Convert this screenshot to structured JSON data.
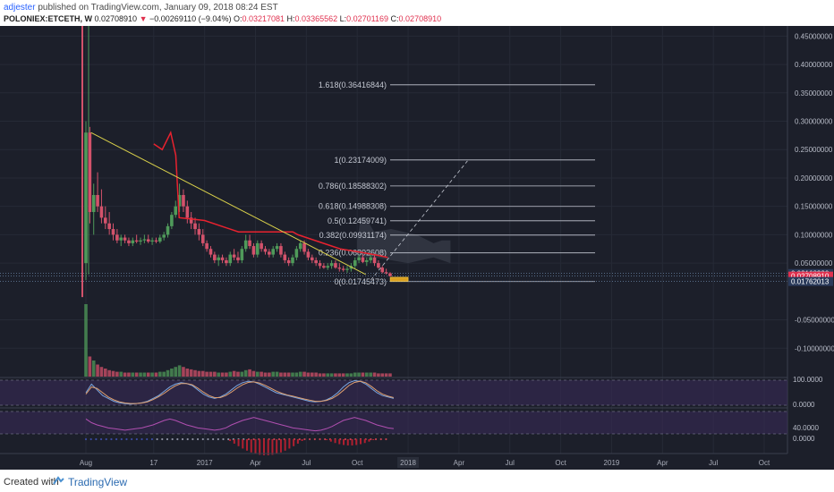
{
  "header": {
    "author": "adjester",
    "published_text": "published on TradingView.com, January 09, 2018 08:24 EST",
    "symbol": "POLONIEX:ETCETH, W",
    "price": "0.02708910",
    "change_arrow": "▼",
    "change": "−0.00269110 (−9.04%)",
    "o_label": "O:",
    "o_value": "0.03217081",
    "h_label": "H:",
    "h_value": "0.03365562",
    "l_label": "L:",
    "l_value": "0.02701169",
    "c_label": "C:",
    "c_value": "0.02708910"
  },
  "footer": {
    "created_with": "Created with",
    "brand": "TradingView",
    "logo_icon": "tradingview-cloud-icon"
  },
  "colors": {
    "background": "#1c1f2a",
    "up": "#4f9a5a",
    "down": "#d3526b",
    "trendline": "#d9d04a",
    "fib": "#c4c8d2",
    "red_line": "#e8222f",
    "stoch_k": "#7aa7e0",
    "stoch_d": "#e0a070",
    "rsi": "#b04fb0",
    "band_fill": "#3a2a5a"
  },
  "chart_data": {
    "type": "candlestick",
    "ylim": [
      -0.15,
      0.46
    ],
    "price_ticks": [
      {
        "value": 0.45,
        "label": "0.45000000"
      },
      {
        "value": 0.4,
        "label": "0.40000000"
      },
      {
        "value": 0.35,
        "label": "0.35000000"
      },
      {
        "value": 0.3,
        "label": "0.30000000"
      },
      {
        "value": 0.25,
        "label": "0.25000000"
      },
      {
        "value": 0.2,
        "label": "0.20000000"
      },
      {
        "value": 0.15,
        "label": "0.15000000"
      },
      {
        "value": 0.1,
        "label": "0.10000000"
      },
      {
        "value": 0.05,
        "label": "0.05000000"
      },
      {
        "value": -0.05,
        "label": "-0.05000000"
      },
      {
        "value": -0.1,
        "label": "-0.10000000"
      }
    ],
    "price_tags": [
      {
        "value": 0.0316833,
        "label": "0.03168330",
        "color": "#2a3a5a"
      },
      {
        "value": 0.0270891,
        "label": "0.02708910",
        "color": "#e0304e"
      },
      {
        "value": 0.01762013,
        "label": "0.01762013",
        "color": "#2a3a5a"
      }
    ],
    "fib_levels": [
      {
        "value": 0.36416844,
        "label": "1.618(0.36416844)"
      },
      {
        "value": 0.23174009,
        "label": "1(0.23174009)"
      },
      {
        "value": 0.18588302,
        "label": "0.786(0.18588302)"
      },
      {
        "value": 0.14988308,
        "label": "0.618(0.14988308)"
      },
      {
        "value": 0.12459741,
        "label": "0.5(0.12459741)"
      },
      {
        "value": 0.09931174,
        "label": "0.382(0.09931174)"
      },
      {
        "value": 0.06802608,
        "label": "0.236(0.06802608)"
      },
      {
        "value": 0.01745473,
        "label": "0(0.01745473)"
      }
    ],
    "time_axis": [
      {
        "t": 0.0,
        "label": "Aug"
      },
      {
        "t": 4.0,
        "label": "17"
      },
      {
        "t": 7.0,
        "label": "2017"
      },
      {
        "t": 10.0,
        "label": "Apr"
      },
      {
        "t": 13.0,
        "label": "Jul"
      },
      {
        "t": 16.0,
        "label": "Oct"
      },
      {
        "t": 19.0,
        "label": "2018"
      },
      {
        "t": 22.0,
        "label": "Apr"
      },
      {
        "t": 25.0,
        "label": "Jul"
      },
      {
        "t": 28.0,
        "label": "Oct"
      },
      {
        "t": 31.0,
        "label": "2019"
      },
      {
        "t": 34.0,
        "label": "Apr"
      },
      {
        "t": 37.0,
        "label": "Jul"
      },
      {
        "t": 40.0,
        "label": "Oct"
      }
    ],
    "candles": [
      [
        0.0,
        0.05,
        0.3,
        0.02,
        0.28
      ],
      [
        0.23,
        0.28,
        0.29,
        0.12,
        0.14
      ],
      [
        0.46,
        0.14,
        0.19,
        0.1,
        0.17
      ],
      [
        0.69,
        0.17,
        0.21,
        0.14,
        0.15
      ],
      [
        0.92,
        0.15,
        0.18,
        0.12,
        0.13
      ],
      [
        1.15,
        0.13,
        0.15,
        0.11,
        0.12
      ],
      [
        1.38,
        0.12,
        0.14,
        0.1,
        0.11
      ],
      [
        1.61,
        0.11,
        0.12,
        0.09,
        0.1
      ],
      [
        1.84,
        0.1,
        0.11,
        0.085,
        0.09
      ],
      [
        2.07,
        0.09,
        0.1,
        0.08,
        0.095
      ],
      [
        2.3,
        0.095,
        0.1,
        0.085,
        0.09
      ],
      [
        2.53,
        0.09,
        0.095,
        0.08,
        0.085
      ],
      [
        2.76,
        0.085,
        0.095,
        0.08,
        0.09
      ],
      [
        2.99,
        0.09,
        0.1,
        0.085,
        0.088
      ],
      [
        3.22,
        0.088,
        0.095,
        0.082,
        0.09
      ],
      [
        3.45,
        0.09,
        0.1,
        0.085,
        0.092
      ],
      [
        3.68,
        0.092,
        0.1,
        0.085,
        0.088
      ],
      [
        3.91,
        0.088,
        0.095,
        0.082,
        0.09
      ],
      [
        4.14,
        0.09,
        0.095,
        0.085,
        0.088
      ],
      [
        4.37,
        0.088,
        0.1,
        0.085,
        0.095
      ],
      [
        4.6,
        0.095,
        0.105,
        0.09,
        0.1
      ],
      [
        4.83,
        0.1,
        0.12,
        0.095,
        0.115
      ],
      [
        5.06,
        0.115,
        0.14,
        0.11,
        0.135
      ],
      [
        5.29,
        0.135,
        0.16,
        0.13,
        0.15
      ],
      [
        5.52,
        0.15,
        0.19,
        0.14,
        0.17
      ],
      [
        5.75,
        0.17,
        0.18,
        0.14,
        0.15
      ],
      [
        5.98,
        0.15,
        0.16,
        0.12,
        0.13
      ],
      [
        6.21,
        0.13,
        0.14,
        0.11,
        0.12
      ],
      [
        6.44,
        0.12,
        0.13,
        0.1,
        0.11
      ],
      [
        6.67,
        0.11,
        0.12,
        0.09,
        0.1
      ],
      [
        6.9,
        0.1,
        0.11,
        0.08,
        0.085
      ],
      [
        7.13,
        0.085,
        0.09,
        0.07,
        0.075
      ],
      [
        7.36,
        0.075,
        0.08,
        0.06,
        0.065
      ],
      [
        7.59,
        0.065,
        0.07,
        0.05,
        0.055
      ],
      [
        7.82,
        0.055,
        0.065,
        0.045,
        0.06
      ],
      [
        8.05,
        0.06,
        0.065,
        0.05,
        0.055
      ],
      [
        8.28,
        0.055,
        0.06,
        0.045,
        0.05
      ],
      [
        8.51,
        0.05,
        0.07,
        0.045,
        0.065
      ],
      [
        8.74,
        0.065,
        0.075,
        0.055,
        0.06
      ],
      [
        8.97,
        0.06,
        0.07,
        0.05,
        0.055
      ],
      [
        9.2,
        0.055,
        0.08,
        0.05,
        0.075
      ],
      [
        9.43,
        0.075,
        0.1,
        0.07,
        0.09
      ],
      [
        9.66,
        0.09,
        0.1,
        0.075,
        0.08
      ],
      [
        9.89,
        0.08,
        0.085,
        0.06,
        0.065
      ],
      [
        10.12,
        0.065,
        0.09,
        0.06,
        0.085
      ],
      [
        10.35,
        0.085,
        0.09,
        0.07,
        0.075
      ],
      [
        10.58,
        0.075,
        0.08,
        0.065,
        0.07
      ],
      [
        10.81,
        0.07,
        0.075,
        0.06,
        0.065
      ],
      [
        11.04,
        0.065,
        0.08,
        0.06,
        0.075
      ],
      [
        11.27,
        0.075,
        0.085,
        0.07,
        0.08
      ],
      [
        11.5,
        0.08,
        0.085,
        0.06,
        0.065
      ],
      [
        11.73,
        0.065,
        0.07,
        0.05,
        0.055
      ],
      [
        11.96,
        0.055,
        0.06,
        0.045,
        0.05
      ],
      [
        12.19,
        0.05,
        0.065,
        0.045,
        0.06
      ],
      [
        12.42,
        0.06,
        0.08,
        0.055,
        0.075
      ],
      [
        12.65,
        0.075,
        0.09,
        0.07,
        0.085
      ],
      [
        12.88,
        0.085,
        0.09,
        0.065,
        0.07
      ],
      [
        13.11,
        0.07,
        0.075,
        0.055,
        0.06
      ],
      [
        13.34,
        0.06,
        0.065,
        0.05,
        0.055
      ],
      [
        13.57,
        0.055,
        0.06,
        0.045,
        0.05
      ],
      [
        13.8,
        0.05,
        0.055,
        0.04,
        0.045
      ],
      [
        14.03,
        0.045,
        0.05,
        0.04,
        0.042
      ],
      [
        14.26,
        0.042,
        0.05,
        0.038,
        0.045
      ],
      [
        14.49,
        0.045,
        0.055,
        0.04,
        0.05
      ],
      [
        14.72,
        0.05,
        0.055,
        0.04,
        0.042
      ],
      [
        14.95,
        0.042,
        0.05,
        0.035,
        0.04
      ],
      [
        15.18,
        0.04,
        0.045,
        0.035,
        0.038
      ],
      [
        15.41,
        0.038,
        0.045,
        0.033,
        0.04
      ],
      [
        15.64,
        0.04,
        0.05,
        0.035,
        0.045
      ],
      [
        15.87,
        0.045,
        0.06,
        0.04,
        0.055
      ],
      [
        16.1,
        0.055,
        0.065,
        0.05,
        0.06
      ],
      [
        16.33,
        0.06,
        0.065,
        0.05,
        0.052
      ],
      [
        16.56,
        0.052,
        0.06,
        0.045,
        0.055
      ],
      [
        16.79,
        0.055,
        0.065,
        0.05,
        0.06
      ],
      [
        17.02,
        0.06,
        0.065,
        0.045,
        0.05
      ],
      [
        17.25,
        0.05,
        0.055,
        0.04,
        0.042
      ],
      [
        17.48,
        0.042,
        0.045,
        0.032,
        0.034
      ],
      [
        17.71,
        0.034,
        0.04,
        0.03,
        0.032
      ],
      [
        17.94,
        0.032,
        0.034,
        0.027,
        0.027
      ]
    ],
    "trendline": [
      [
        0.3,
        0.28
      ],
      [
        16.5,
        0.03
      ]
    ],
    "fib_dashed": [
      [
        16.8,
        0.02
      ],
      [
        22.5,
        0.23
      ]
    ],
    "red_line": [
      [
        4.0,
        0.26
      ],
      [
        4.5,
        0.25
      ],
      [
        5.0,
        0.28
      ],
      [
        5.3,
        0.24
      ],
      [
        5.5,
        0.13
      ],
      [
        7.0,
        0.125
      ],
      [
        9.0,
        0.105
      ],
      [
        12.2,
        0.105
      ],
      [
        12.5,
        0.1
      ],
      [
        13.5,
        0.09
      ],
      [
        15.0,
        0.075
      ],
      [
        16.0,
        0.07
      ],
      [
        17.0,
        0.065
      ],
      [
        17.8,
        0.06
      ]
    ],
    "cloud": [
      [
        16.0,
        0.09
      ],
      [
        16.2,
        0.13
      ],
      [
        16.5,
        0.13
      ],
      [
        17.0,
        0.105
      ],
      [
        18.0,
        0.11
      ],
      [
        19.5,
        0.1
      ],
      [
        20.5,
        0.085
      ],
      [
        21.0,
        0.09
      ],
      [
        21.5,
        0.09
      ],
      [
        21.5,
        0.05
      ],
      [
        20.5,
        0.06
      ],
      [
        19.0,
        0.05
      ],
      [
        17.0,
        0.06
      ],
      [
        16.0,
        0.06
      ]
    ],
    "current_box": [
      17.95,
      19.0,
      0.018,
      0.025
    ],
    "volume": [
      0.9,
      0.25,
      0.2,
      0.15,
      0.12,
      0.1,
      0.08,
      0.07,
      0.06,
      0.06,
      0.05,
      0.05,
      0.05,
      0.05,
      0.05,
      0.05,
      0.05,
      0.05,
      0.05,
      0.06,
      0.06,
      0.08,
      0.1,
      0.12,
      0.14,
      0.12,
      0.1,
      0.09,
      0.08,
      0.07,
      0.07,
      0.06,
      0.06,
      0.06,
      0.05,
      0.05,
      0.05,
      0.06,
      0.07,
      0.06,
      0.06,
      0.08,
      0.09,
      0.07,
      0.06,
      0.06,
      0.05,
      0.05,
      0.06,
      0.06,
      0.05,
      0.05,
      0.05,
      0.05,
      0.05,
      0.06,
      0.06,
      0.05,
      0.05,
      0.05,
      0.04,
      0.04,
      0.04,
      0.04,
      0.04,
      0.04,
      0.04,
      0.04,
      0.04,
      0.05,
      0.05,
      0.05,
      0.05,
      0.05,
      0.05,
      0.04,
      0.04,
      0.04,
      0.04
    ],
    "stoch_ticks": [
      {
        "value": 100,
        "label": "100.0000"
      },
      {
        "value": 0,
        "label": "0.0000"
      }
    ],
    "stoch_k": [
      50,
      80,
      60,
      40,
      30,
      20,
      15,
      12,
      10,
      12,
      15,
      20,
      30,
      40,
      55,
      70,
      80,
      85,
      82,
      75,
      60,
      45,
      35,
      30,
      35,
      45,
      60,
      75,
      85,
      90,
      88,
      80,
      70,
      60,
      50,
      45,
      40,
      35,
      30,
      25,
      20,
      18,
      20,
      25,
      35,
      50,
      70,
      85,
      92,
      90,
      80,
      65,
      50,
      40,
      35,
      30
    ],
    "stoch_d": [
      45,
      70,
      65,
      50,
      35,
      25,
      18,
      14,
      12,
      12,
      14,
      18,
      26,
      36,
      48,
      62,
      74,
      82,
      82,
      78,
      66,
      52,
      40,
      33,
      33,
      40,
      52,
      66,
      78,
      86,
      88,
      84,
      76,
      66,
      56,
      48,
      42,
      38,
      33,
      28,
      24,
      20,
      20,
      23,
      30,
      42,
      58,
      75,
      86,
      90,
      85,
      72,
      57,
      45,
      38,
      33
    ],
    "rsi_ticks": [
      {
        "value": 40,
        "label": "40.0000"
      },
      {
        "value": 0,
        "label": "0.0000"
      }
    ],
    "rsi": [
      60,
      55,
      52,
      50,
      48,
      47,
      46,
      45,
      46,
      47,
      48,
      50,
      52,
      55,
      58,
      60,
      58,
      55,
      52,
      50,
      48,
      47,
      46,
      45,
      46,
      48,
      52,
      55,
      58,
      60,
      62,
      60,
      58,
      56,
      54,
      52,
      50,
      48,
      47,
      46,
      45,
      44,
      45,
      47,
      50,
      54,
      58,
      60,
      62,
      60,
      58,
      55,
      52,
      50,
      48,
      47
    ]
  }
}
